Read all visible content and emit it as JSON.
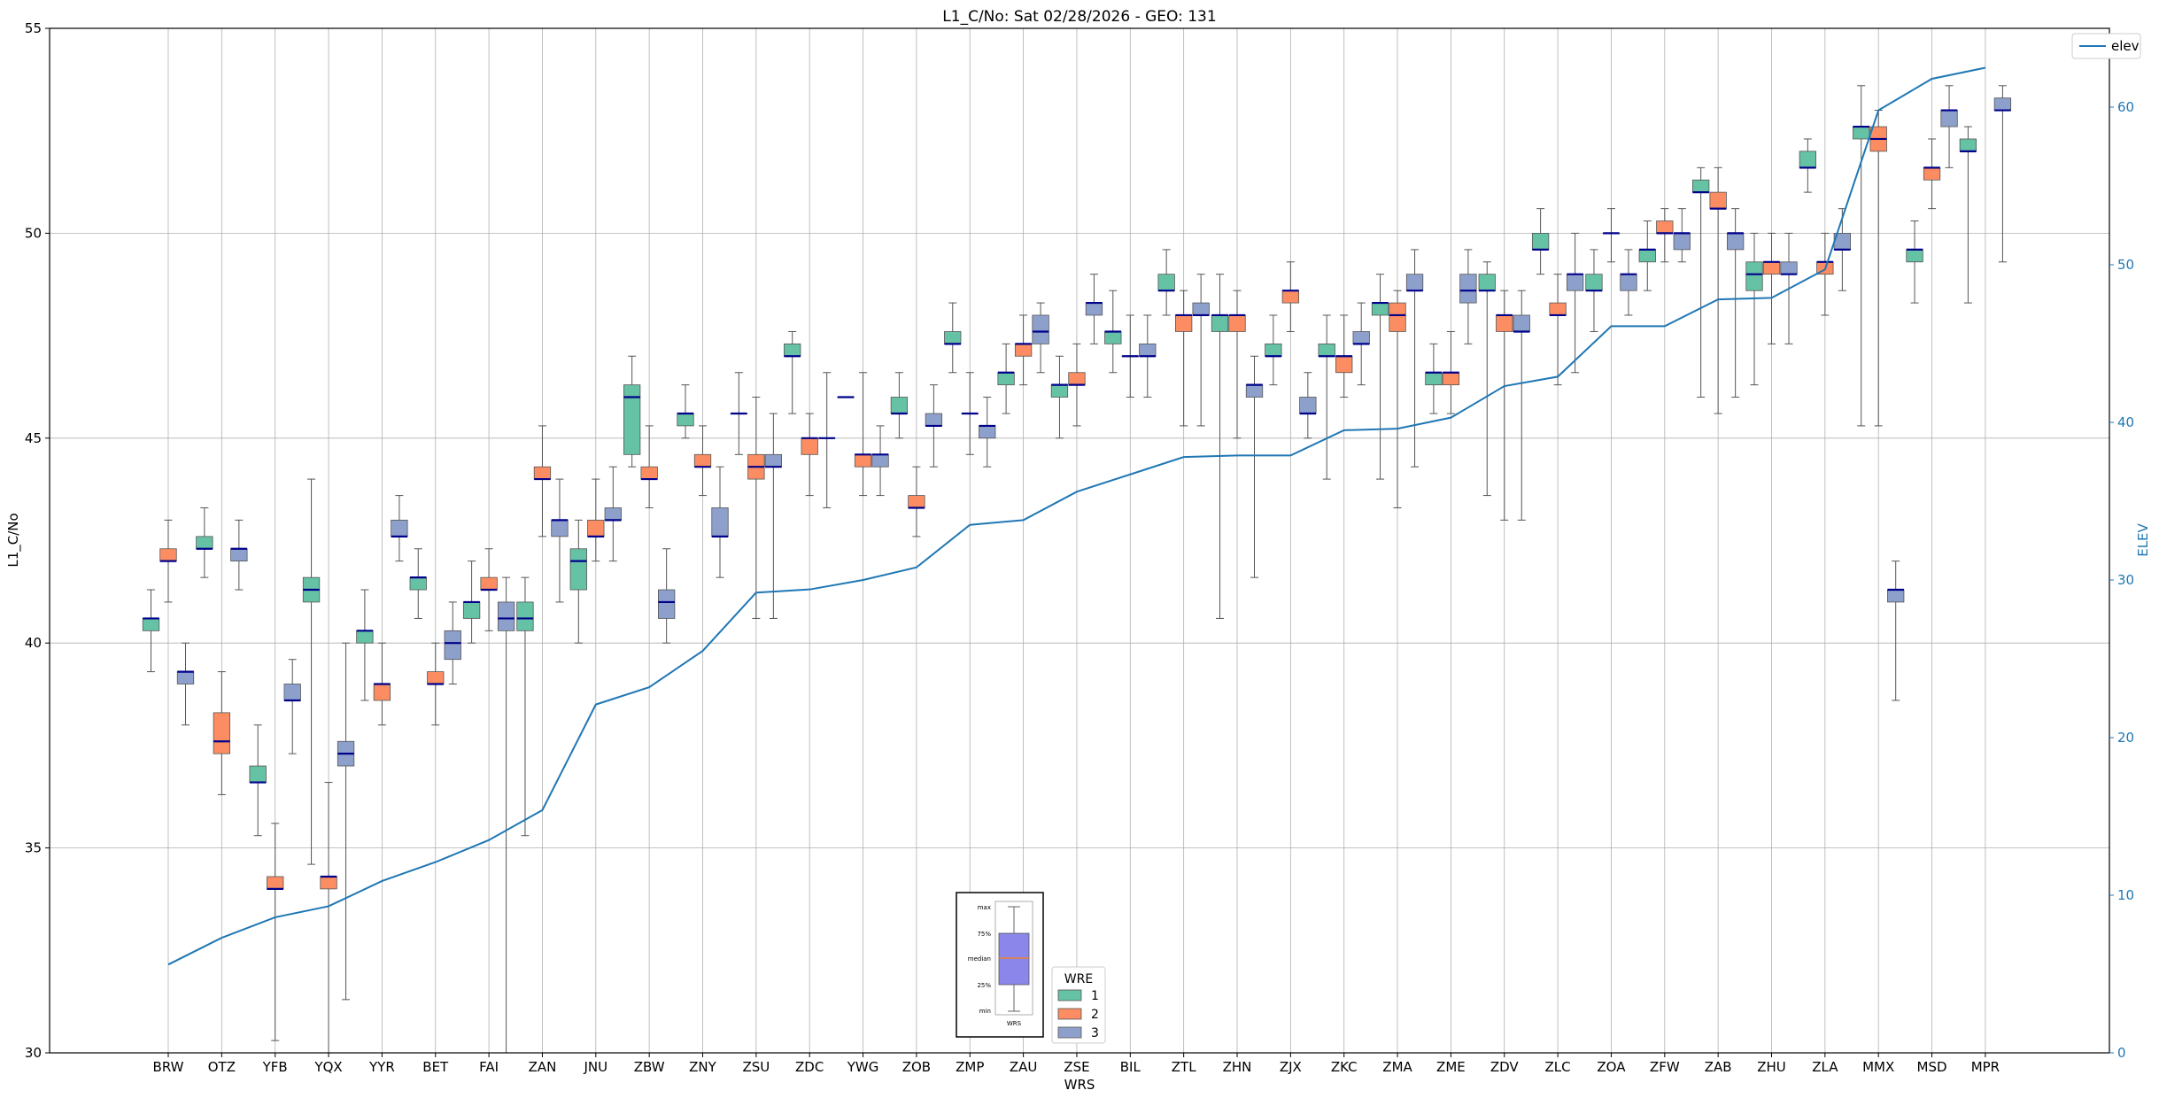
{
  "chart_data": {
    "type": "box",
    "title": "L1_C/No: Sat 02/28/2026 - GEO: 131",
    "xlabel": "WRS",
    "ylabel": "L1_C/No",
    "y2label": "ELEV",
    "ylim": [
      30,
      55
    ],
    "y2lim": [
      0,
      65
    ],
    "yticks": [
      30,
      35,
      40,
      45,
      50,
      55
    ],
    "y2ticks": [
      0,
      10,
      20,
      30,
      40,
      50,
      60
    ],
    "grid": true,
    "categories": [
      "BRW",
      "OTZ",
      "YFB",
      "YQX",
      "YYR",
      "BET",
      "FAI",
      "ZAN",
      "JNU",
      "ZBW",
      "ZNY",
      "ZSU",
      "ZDC",
      "YWG",
      "ZOB",
      "ZMP",
      "ZAU",
      "ZSE",
      "BIL",
      "ZTL",
      "ZHN",
      "ZJX",
      "ZKC",
      "ZMA",
      "ZME",
      "ZDV",
      "ZLC",
      "ZOA",
      "ZFW",
      "ZAB",
      "ZHU",
      "ZLA",
      "MMX",
      "MSD",
      "MPR"
    ],
    "colors": {
      "1": "#66c2a5",
      "2": "#fc8d62",
      "3": "#8da0cb",
      "elev": "#1f77b4",
      "median": "#00008b"
    },
    "elev_legend": "elev",
    "wre_legend": {
      "title": "WRE",
      "entries": [
        "1",
        "2",
        "3"
      ]
    },
    "inset_legend": {
      "labels": [
        "max",
        "75%",
        "median",
        "25%",
        "min"
      ],
      "xlabel": "WRS",
      "fill": "#8a86ea",
      "median_color": "#ff7f0e"
    },
    "elev": [
      5.6,
      7.3,
      8.6,
      9.3,
      10.9,
      12.1,
      13.5,
      15.4,
      22.1,
      23.2,
      25.5,
      29.2,
      29.4,
      30.0,
      30.8,
      33.5,
      33.8,
      35.6,
      36.7,
      37.8,
      37.9,
      37.9,
      39.5,
      39.6,
      40.3,
      42.3,
      42.9,
      46.1,
      46.1,
      47.8,
      47.9,
      49.7,
      59.8,
      61.8,
      62.5
    ],
    "series": [
      {
        "wre": "1",
        "cat": "BRW",
        "min": 39.3,
        "q1": 40.3,
        "med": 40.6,
        "q3": 40.6,
        "max": 41.3
      },
      {
        "wre": "2",
        "cat": "BRW",
        "min": 41.0,
        "q1": 42.0,
        "med": 42.0,
        "q3": 42.3,
        "max": 43.0
      },
      {
        "wre": "3",
        "cat": "BRW",
        "min": 38.0,
        "q1": 39.0,
        "med": 39.3,
        "q3": 39.3,
        "max": 40.0
      },
      {
        "wre": "2",
        "cat": "OTZ",
        "min": 36.3,
        "q1": 37.3,
        "med": 37.6,
        "q3": 38.3,
        "max": 39.3
      },
      {
        "wre": "1",
        "cat": "OTZ",
        "min": 41.6,
        "q1": 42.3,
        "med": 42.3,
        "q3": 42.6,
        "max": 43.3
      },
      {
        "wre": "3",
        "cat": "OTZ",
        "min": 41.3,
        "q1": 42.0,
        "med": 42.3,
        "q3": 42.3,
        "max": 43.0
      },
      {
        "wre": "1",
        "cat": "YFB",
        "min": 35.3,
        "q1": 36.6,
        "med": 36.6,
        "q3": 37.0,
        "max": 38.0
      },
      {
        "wre": "2",
        "cat": "YFB",
        "min": 30.3,
        "q1": 34.0,
        "med": 34.0,
        "q3": 34.3,
        "max": 35.6
      },
      {
        "wre": "3",
        "cat": "YFB",
        "min": 37.3,
        "q1": 38.6,
        "med": 38.6,
        "q3": 39.0,
        "max": 39.6
      },
      {
        "wre": "1",
        "cat": "YQX",
        "min": 34.6,
        "q1": 41.0,
        "med": 41.3,
        "q3": 41.6,
        "max": 44.0
      },
      {
        "wre": "2",
        "cat": "YQX",
        "min": 30.0,
        "q1": 34.0,
        "med": 34.3,
        "q3": 34.3,
        "max": 36.6
      },
      {
        "wre": "3",
        "cat": "YQX",
        "min": 31.3,
        "q1": 37.0,
        "med": 37.3,
        "q3": 37.6,
        "max": 40.0
      },
      {
        "wre": "1",
        "cat": "YYR",
        "min": 38.6,
        "q1": 40.0,
        "med": 40.3,
        "q3": 40.3,
        "max": 41.3
      },
      {
        "wre": "2",
        "cat": "YYR",
        "min": 38.0,
        "q1": 38.6,
        "med": 39.0,
        "q3": 39.0,
        "max": 40.0
      },
      {
        "wre": "3",
        "cat": "YYR",
        "min": 42.0,
        "q1": 42.6,
        "med": 42.6,
        "q3": 43.0,
        "max": 43.6
      },
      {
        "wre": "1",
        "cat": "BET",
        "min": 40.6,
        "q1": 41.3,
        "med": 41.6,
        "q3": 41.6,
        "max": 42.3
      },
      {
        "wre": "2",
        "cat": "BET",
        "min": 38.0,
        "q1": 39.0,
        "med": 39.0,
        "q3": 39.3,
        "max": 40.0
      },
      {
        "wre": "3",
        "cat": "BET",
        "min": 39.0,
        "q1": 39.6,
        "med": 40.0,
        "q3": 40.3,
        "max": 41.0
      },
      {
        "wre": "1",
        "cat": "FAI",
        "min": 40.0,
        "q1": 40.6,
        "med": 41.0,
        "q3": 41.0,
        "max": 42.0
      },
      {
        "wre": "2",
        "cat": "FAI",
        "min": 40.3,
        "q1": 41.3,
        "med": 41.3,
        "q3": 41.6,
        "max": 42.3
      },
      {
        "wre": "3",
        "cat": "FAI",
        "min": 30.0,
        "q1": 40.3,
        "med": 40.6,
        "q3": 41.0,
        "max": 41.6
      },
      {
        "wre": "1",
        "cat": "ZAN",
        "min": 35.3,
        "q1": 40.3,
        "med": 40.6,
        "q3": 41.0,
        "max": 41.6
      },
      {
        "wre": "2",
        "cat": "ZAN",
        "min": 42.6,
        "q1": 44.0,
        "med": 44.0,
        "q3": 44.3,
        "max": 45.3
      },
      {
        "wre": "3",
        "cat": "ZAN",
        "min": 41.0,
        "q1": 42.6,
        "med": 43.0,
        "q3": 43.0,
        "max": 44.0
      },
      {
        "wre": "1",
        "cat": "JNU",
        "min": 40.0,
        "q1": 41.3,
        "med": 42.0,
        "q3": 42.3,
        "max": 43.0
      },
      {
        "wre": "2",
        "cat": "JNU",
        "min": 42.0,
        "q1": 42.6,
        "med": 42.6,
        "q3": 43.0,
        "max": 44.0
      },
      {
        "wre": "3",
        "cat": "JNU",
        "min": 42.0,
        "q1": 43.0,
        "med": 43.0,
        "q3": 43.3,
        "max": 44.3
      },
      {
        "wre": "1",
        "cat": "ZBW",
        "min": 44.3,
        "q1": 44.6,
        "med": 46.0,
        "q3": 46.3,
        "max": 47.0
      },
      {
        "wre": "2",
        "cat": "ZBW",
        "min": 43.3,
        "q1": 44.0,
        "med": 44.0,
        "q3": 44.3,
        "max": 45.3
      },
      {
        "wre": "3",
        "cat": "ZBW",
        "min": 40.0,
        "q1": 40.6,
        "med": 41.0,
        "q3": 41.3,
        "max": 42.3
      },
      {
        "wre": "1",
        "cat": "ZNY",
        "min": 45.0,
        "q1": 45.3,
        "med": 45.6,
        "q3": 45.6,
        "max": 46.3
      },
      {
        "wre": "2",
        "cat": "ZNY",
        "min": 43.6,
        "q1": 44.3,
        "med": 44.3,
        "q3": 44.6,
        "max": 45.3
      },
      {
        "wre": "3",
        "cat": "ZNY",
        "min": 41.6,
        "q1": 42.6,
        "med": 42.6,
        "q3": 43.3,
        "max": 44.3
      },
      {
        "wre": "1",
        "cat": "ZSU",
        "min": 44.6,
        "q1": 45.6,
        "med": 45.6,
        "q3": 45.6,
        "max": 46.6
      },
      {
        "wre": "2",
        "cat": "ZSU",
        "min": 40.6,
        "q1": 44.0,
        "med": 44.3,
        "q3": 44.6,
        "max": 46.0
      },
      {
        "wre": "3",
        "cat": "ZSU",
        "min": 40.6,
        "q1": 44.3,
        "med": 44.3,
        "q3": 44.6,
        "max": 45.6
      },
      {
        "wre": "1",
        "cat": "ZDC",
        "min": 45.6,
        "q1": 47.0,
        "med": 47.0,
        "q3": 47.3,
        "max": 47.6
      },
      {
        "wre": "2",
        "cat": "ZDC",
        "min": 43.6,
        "q1": 44.6,
        "med": 45.0,
        "q3": 45.0,
        "max": 45.6
      },
      {
        "wre": "3",
        "cat": "ZDC",
        "min": 43.3,
        "q1": 45.0,
        "med": 45.0,
        "q3": 45.0,
        "max": 46.6
      },
      {
        "wre": "1",
        "cat": "YWG",
        "min": 46.0,
        "q1": 46.0,
        "med": 46.0,
        "q3": 46.0,
        "max": 46.0
      },
      {
        "wre": "2",
        "cat": "YWG",
        "min": 43.6,
        "q1": 44.3,
        "med": 44.6,
        "q3": 44.6,
        "max": 46.6
      },
      {
        "wre": "3",
        "cat": "YWG",
        "min": 43.6,
        "q1": 44.3,
        "med": 44.6,
        "q3": 44.6,
        "max": 45.3
      },
      {
        "wre": "1",
        "cat": "ZOB",
        "min": 45.0,
        "q1": 45.6,
        "med": 45.6,
        "q3": 46.0,
        "max": 46.6
      },
      {
        "wre": "2",
        "cat": "ZOB",
        "min": 42.6,
        "q1": 43.3,
        "med": 43.3,
        "q3": 43.6,
        "max": 44.3
      },
      {
        "wre": "3",
        "cat": "ZOB",
        "min": 44.3,
        "q1": 45.3,
        "med": 45.3,
        "q3": 45.6,
        "max": 46.3
      },
      {
        "wre": "1",
        "cat": "ZMP",
        "min": 46.6,
        "q1": 47.3,
        "med": 47.3,
        "q3": 47.6,
        "max": 48.3
      },
      {
        "wre": "2",
        "cat": "ZMP",
        "min": 44.6,
        "q1": 45.6,
        "med": 45.6,
        "q3": 45.6,
        "max": 46.6
      },
      {
        "wre": "3",
        "cat": "ZMP",
        "min": 44.3,
        "q1": 45.0,
        "med": 45.3,
        "q3": 45.3,
        "max": 46.0
      },
      {
        "wre": "1",
        "cat": "ZAU",
        "min": 45.6,
        "q1": 46.3,
        "med": 46.6,
        "q3": 46.6,
        "max": 47.3
      },
      {
        "wre": "2",
        "cat": "ZAU",
        "min": 46.3,
        "q1": 47.0,
        "med": 47.3,
        "q3": 47.3,
        "max": 48.0
      },
      {
        "wre": "3",
        "cat": "ZAU",
        "min": 46.6,
        "q1": 47.3,
        "med": 47.6,
        "q3": 48.0,
        "max": 48.3
      },
      {
        "wre": "1",
        "cat": "ZSE",
        "min": 45.0,
        "q1": 46.0,
        "med": 46.3,
        "q3": 46.3,
        "max": 47.0
      },
      {
        "wre": "2",
        "cat": "ZSE",
        "min": 45.3,
        "q1": 46.3,
        "med": 46.3,
        "q3": 46.6,
        "max": 47.3
      },
      {
        "wre": "3",
        "cat": "ZSE",
        "min": 47.3,
        "q1": 48.0,
        "med": 48.3,
        "q3": 48.3,
        "max": 49.0
      },
      {
        "wre": "1",
        "cat": "BIL",
        "min": 46.6,
        "q1": 47.3,
        "med": 47.6,
        "q3": 47.6,
        "max": 48.6
      },
      {
        "wre": "2",
        "cat": "BIL",
        "min": 46.0,
        "q1": 47.0,
        "med": 47.0,
        "q3": 47.0,
        "max": 48.0
      },
      {
        "wre": "3",
        "cat": "BIL",
        "min": 46.0,
        "q1": 47.0,
        "med": 47.0,
        "q3": 47.3,
        "max": 48.0
      },
      {
        "wre": "1",
        "cat": "ZTL",
        "min": 48.0,
        "q1": 48.6,
        "med": 48.6,
        "q3": 49.0,
        "max": 49.6
      },
      {
        "wre": "2",
        "cat": "ZTL",
        "min": 45.3,
        "q1": 47.6,
        "med": 48.0,
        "q3": 48.0,
        "max": 48.6
      },
      {
        "wre": "3",
        "cat": "ZTL",
        "min": 45.3,
        "q1": 48.0,
        "med": 48.0,
        "q3": 48.3,
        "max": 49.0
      },
      {
        "wre": "1",
        "cat": "ZHN",
        "min": 40.6,
        "q1": 47.6,
        "med": 48.0,
        "q3": 48.0,
        "max": 49.0
      },
      {
        "wre": "2",
        "cat": "ZHN",
        "min": 45.0,
        "q1": 47.6,
        "med": 48.0,
        "q3": 48.0,
        "max": 48.6
      },
      {
        "wre": "3",
        "cat": "ZHN",
        "min": 41.6,
        "q1": 46.0,
        "med": 46.3,
        "q3": 46.3,
        "max": 47.0
      },
      {
        "wre": "1",
        "cat": "ZJX",
        "min": 46.3,
        "q1": 47.0,
        "med": 47.0,
        "q3": 47.3,
        "max": 48.0
      },
      {
        "wre": "2",
        "cat": "ZJX",
        "min": 47.6,
        "q1": 48.3,
        "med": 48.6,
        "q3": 48.6,
        "max": 49.3
      },
      {
        "wre": "3",
        "cat": "ZJX",
        "min": 45.0,
        "q1": 45.6,
        "med": 45.6,
        "q3": 46.0,
        "max": 46.6
      },
      {
        "wre": "1",
        "cat": "ZKC",
        "min": 44.0,
        "q1": 47.0,
        "med": 47.0,
        "q3": 47.3,
        "max": 48.0
      },
      {
        "wre": "2",
        "cat": "ZKC",
        "min": 46.0,
        "q1": 46.6,
        "med": 47.0,
        "q3": 47.0,
        "max": 48.0
      },
      {
        "wre": "3",
        "cat": "ZKC",
        "min": 46.3,
        "q1": 47.3,
        "med": 47.3,
        "q3": 47.6,
        "max": 48.3
      },
      {
        "wre": "1",
        "cat": "ZMA",
        "min": 44.0,
        "q1": 48.0,
        "med": 48.3,
        "q3": 48.3,
        "max": 49.0
      },
      {
        "wre": "2",
        "cat": "ZMA",
        "min": 43.3,
        "q1": 47.6,
        "med": 48.0,
        "q3": 48.3,
        "max": 48.6
      },
      {
        "wre": "3",
        "cat": "ZMA",
        "min": 44.3,
        "q1": 48.6,
        "med": 48.6,
        "q3": 49.0,
        "max": 49.6
      },
      {
        "wre": "1",
        "cat": "ZME",
        "min": 45.6,
        "q1": 46.3,
        "med": 46.6,
        "q3": 46.6,
        "max": 47.3
      },
      {
        "wre": "2",
        "cat": "ZME",
        "min": 45.6,
        "q1": 46.3,
        "med": 46.6,
        "q3": 46.6,
        "max": 47.6
      },
      {
        "wre": "3",
        "cat": "ZME",
        "min": 47.3,
        "q1": 48.3,
        "med": 48.6,
        "q3": 49.0,
        "max": 49.6
      },
      {
        "wre": "1",
        "cat": "ZDV",
        "min": 43.6,
        "q1": 48.6,
        "med": 48.6,
        "q3": 49.0,
        "max": 49.3
      },
      {
        "wre": "2",
        "cat": "ZDV",
        "min": 43.0,
        "q1": 47.6,
        "med": 48.0,
        "q3": 48.0,
        "max": 48.6
      },
      {
        "wre": "3",
        "cat": "ZDV",
        "min": 43.0,
        "q1": 47.6,
        "med": 47.6,
        "q3": 48.0,
        "max": 48.6
      },
      {
        "wre": "1",
        "cat": "ZLC",
        "min": 49.0,
        "q1": 49.6,
        "med": 49.6,
        "q3": 50.0,
        "max": 50.6
      },
      {
        "wre": "2",
        "cat": "ZLC",
        "min": 46.3,
        "q1": 48.0,
        "med": 48.0,
        "q3": 48.3,
        "max": 49.0
      },
      {
        "wre": "3",
        "cat": "ZLC",
        "min": 46.6,
        "q1": 48.6,
        "med": 49.0,
        "q3": 49.0,
        "max": 50.0
      },
      {
        "wre": "1",
        "cat": "ZOA",
        "min": 47.6,
        "q1": 48.6,
        "med": 48.6,
        "q3": 49.0,
        "max": 49.6
      },
      {
        "wre": "2",
        "cat": "ZOA",
        "min": 49.3,
        "q1": 50.0,
        "med": 50.0,
        "q3": 50.0,
        "max": 50.6
      },
      {
        "wre": "3",
        "cat": "ZOA",
        "min": 48.0,
        "q1": 48.6,
        "med": 49.0,
        "q3": 49.0,
        "max": 49.6
      },
      {
        "wre": "1",
        "cat": "ZFW",
        "min": 48.6,
        "q1": 49.3,
        "med": 49.6,
        "q3": 49.6,
        "max": 50.3
      },
      {
        "wre": "2",
        "cat": "ZFW",
        "min": 49.3,
        "q1": 50.0,
        "med": 50.0,
        "q3": 50.3,
        "max": 50.6
      },
      {
        "wre": "3",
        "cat": "ZFW",
        "min": 49.3,
        "q1": 49.6,
        "med": 50.0,
        "q3": 50.0,
        "max": 50.6
      },
      {
        "wre": "1",
        "cat": "ZAB",
        "min": 46.0,
        "q1": 51.0,
        "med": 51.0,
        "q3": 51.3,
        "max": 51.6
      },
      {
        "wre": "2",
        "cat": "ZAB",
        "min": 45.6,
        "q1": 50.6,
        "med": 50.6,
        "q3": 51.0,
        "max": 51.6
      },
      {
        "wre": "3",
        "cat": "ZAB",
        "min": 46.0,
        "q1": 49.6,
        "med": 50.0,
        "q3": 50.0,
        "max": 50.6
      },
      {
        "wre": "1",
        "cat": "ZHU",
        "min": 46.3,
        "q1": 48.6,
        "med": 49.0,
        "q3": 49.3,
        "max": 50.0
      },
      {
        "wre": "2",
        "cat": "ZHU",
        "min": 47.3,
        "q1": 49.0,
        "med": 49.3,
        "q3": 49.3,
        "max": 50.0
      },
      {
        "wre": "3",
        "cat": "ZHU",
        "min": 47.3,
        "q1": 49.0,
        "med": 49.0,
        "q3": 49.3,
        "max": 50.0
      },
      {
        "wre": "1",
        "cat": "ZLA",
        "min": 51.0,
        "q1": 51.6,
        "med": 51.6,
        "q3": 52.0,
        "max": 52.3
      },
      {
        "wre": "2",
        "cat": "ZLA",
        "min": 48.0,
        "q1": 49.0,
        "med": 49.3,
        "q3": 49.3,
        "max": 50.0
      },
      {
        "wre": "3",
        "cat": "ZLA",
        "min": 48.6,
        "q1": 49.6,
        "med": 49.6,
        "q3": 50.0,
        "max": 50.6
      },
      {
        "wre": "1",
        "cat": "MMX",
        "min": 45.3,
        "q1": 52.3,
        "med": 52.6,
        "q3": 52.6,
        "max": 53.6
      },
      {
        "wre": "2",
        "cat": "MMX",
        "min": 45.3,
        "q1": 52.0,
        "med": 52.3,
        "q3": 52.6,
        "max": 53.0
      },
      {
        "wre": "3",
        "cat": "MMX",
        "min": 38.6,
        "q1": 41.0,
        "med": 41.3,
        "q3": 41.3,
        "max": 42.0
      },
      {
        "wre": "1",
        "cat": "MSD",
        "min": 48.3,
        "q1": 49.3,
        "med": 49.6,
        "q3": 49.6,
        "max": 50.3
      },
      {
        "wre": "2",
        "cat": "MSD",
        "min": 50.6,
        "q1": 51.3,
        "med": 51.6,
        "q3": 51.6,
        "max": 52.3
      },
      {
        "wre": "3",
        "cat": "MSD",
        "min": 51.6,
        "q1": 52.6,
        "med": 53.0,
        "q3": 53.0,
        "max": 53.6
      },
      {
        "wre": "1",
        "cat": "MPR",
        "min": 48.3,
        "q1": 52.0,
        "med": 52.0,
        "q3": 52.3,
        "max": 52.6
      },
      {
        "wre": "3",
        "cat": "MPR",
        "min": 49.3,
        "q1": 53.0,
        "med": 53.0,
        "q3": 53.3,
        "max": 53.6
      }
    ]
  }
}
